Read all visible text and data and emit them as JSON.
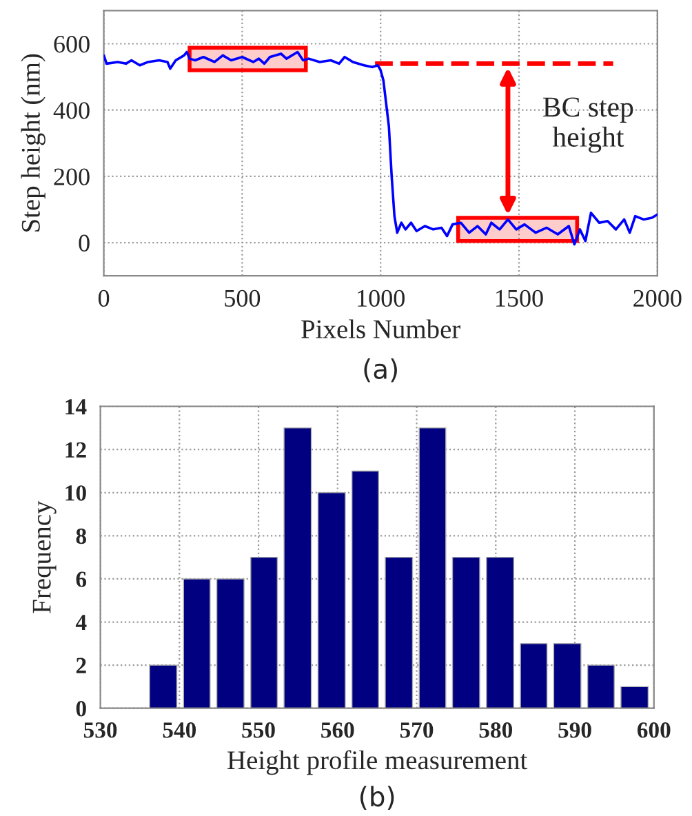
{
  "chart_data": [
    {
      "type": "line",
      "xlabel": "Pixels Number",
      "ylabel": "Step height (nm)",
      "x": [
        0,
        10,
        50,
        80,
        100,
        130,
        160,
        200,
        230,
        240,
        260,
        290,
        300,
        310,
        330,
        360,
        400,
        430,
        460,
        500,
        540,
        560,
        580,
        600,
        640,
        660,
        700,
        720,
        740,
        780,
        820,
        850,
        870,
        900,
        940,
        970,
        990,
        1000,
        1010,
        1020,
        1030,
        1040,
        1050,
        1060,
        1075,
        1090,
        1110,
        1130,
        1160,
        1190,
        1220,
        1240,
        1260,
        1290,
        1320,
        1350,
        1380,
        1400,
        1430,
        1460,
        1490,
        1520,
        1560,
        1600,
        1640,
        1680,
        1700,
        1720,
        1740,
        1760,
        1790,
        1820,
        1850,
        1880,
        1900,
        1920,
        1950,
        1980,
        2000
      ],
      "series": [
        {
          "color": "#0000ff",
          "values": [
            565,
            540,
            545,
            540,
            550,
            535,
            545,
            550,
            545,
            525,
            550,
            565,
            575,
            555,
            550,
            560,
            545,
            565,
            550,
            560,
            545,
            555,
            540,
            560,
            570,
            555,
            575,
            550,
            555,
            545,
            550,
            540,
            560,
            545,
            535,
            530,
            535,
            520,
            490,
            420,
            350,
            200,
            80,
            30,
            60,
            40,
            60,
            35,
            50,
            40,
            45,
            20,
            55,
            60,
            30,
            50,
            25,
            60,
            40,
            70,
            40,
            55,
            30,
            45,
            25,
            50,
            -5,
            40,
            5,
            90,
            60,
            65,
            40,
            70,
            30,
            80,
            70,
            75,
            85
          ]
        }
      ],
      "xlim": [
        0,
        2000
      ],
      "ylim": [
        -100,
        700
      ],
      "xticks": [
        0,
        500,
        1000,
        1500,
        2000
      ],
      "yticks": [
        0,
        200,
        400,
        600
      ],
      "grid": true,
      "ref_lines": [
        {
          "axis": "y",
          "value": 540,
          "color": "#ff0000",
          "line_style": "dashed"
        }
      ],
      "bands": [
        {
          "axis": "x",
          "from": 310,
          "to": 730,
          "color": "#ff0000"
        },
        {
          "axis": "x",
          "from": 1280,
          "to": 1710,
          "color": "#ff0000"
        }
      ],
      "annotations": [
        "BC step height",
        "(a)"
      ]
    },
    {
      "type": "histogram",
      "xlabel": "Height profile measurement",
      "ylabel": "Frequency",
      "bins": [
        535.8,
        540.1,
        544.3,
        548.6,
        552.8,
        557.1,
        561.4,
        565.6,
        569.9,
        574.1,
        578.4,
        582.7,
        586.9,
        591.2,
        595.4,
        599.7
      ],
      "values": [
        2,
        6,
        6,
        7,
        13,
        10,
        11,
        7,
        13,
        7,
        7,
        3,
        3,
        2,
        1
      ],
      "color": "#000080",
      "xlim": [
        530,
        600
      ],
      "ylim": [
        0,
        14
      ],
      "xticks": [
        530,
        540,
        550,
        560,
        570,
        580,
        590,
        600
      ],
      "yticks": [
        0,
        2,
        4,
        6,
        8,
        10,
        12,
        14
      ],
      "grid": true,
      "annotations": [
        "(b)"
      ]
    }
  ]
}
